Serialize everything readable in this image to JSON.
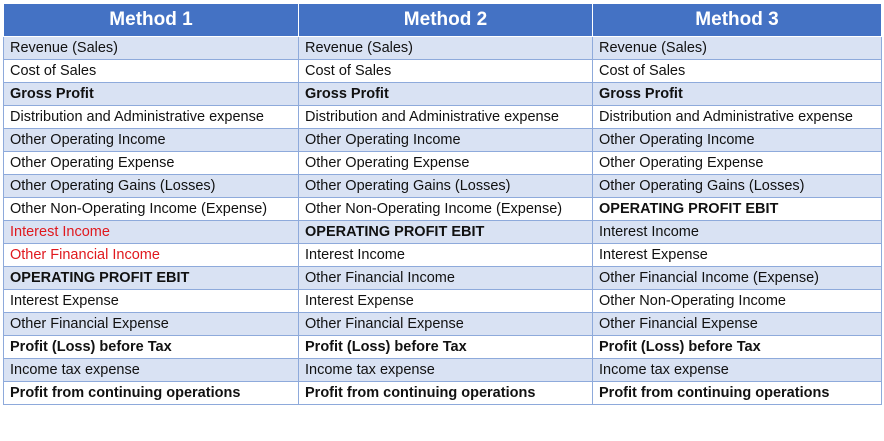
{
  "headers": [
    "Method 1",
    "Method 2",
    "Method 3"
  ],
  "rows": [
    [
      {
        "t": "Revenue (Sales)"
      },
      {
        "t": "Revenue (Sales)"
      },
      {
        "t": "Revenue (Sales)"
      }
    ],
    [
      {
        "t": "Cost of Sales"
      },
      {
        "t": "Cost of Sales"
      },
      {
        "t": "Cost of Sales"
      }
    ],
    [
      {
        "t": "Gross Profit",
        "bold": true
      },
      {
        "t": "Gross Profit",
        "bold": true
      },
      {
        "t": "Gross Profit",
        "bold": true
      }
    ],
    [
      {
        "t": "Distribution and Administrative expense"
      },
      {
        "t": "Distribution and Administrative expense"
      },
      {
        "t": "Distribution and Administrative expense"
      }
    ],
    [
      {
        "t": "Other Operating Income"
      },
      {
        "t": "Other Operating Income"
      },
      {
        "t": "Other Operating Income"
      }
    ],
    [
      {
        "t": "Other Operating Expense"
      },
      {
        "t": "Other Operating Expense"
      },
      {
        "t": "Other Operating Expense"
      }
    ],
    [
      {
        "t": "Other Operating Gains (Losses)"
      },
      {
        "t": "Other Operating Gains (Losses)"
      },
      {
        "t": "Other Operating Gains (Losses)"
      }
    ],
    [
      {
        "t": "Other Non-Operating Income (Expense)"
      },
      {
        "t": "Other Non-Operating Income (Expense)"
      },
      {
        "t": "OPERATING PROFIT EBIT",
        "bold": true
      }
    ],
    [
      {
        "t": "Interest Income",
        "color": "#e0191e"
      },
      {
        "t": "OPERATING PROFIT EBIT",
        "bold": true
      },
      {
        "t": "Interest Income"
      }
    ],
    [
      {
        "t": "Other Financial Income",
        "color": "#e0191e"
      },
      {
        "t": "Interest Income"
      },
      {
        "t": "Interest Expense"
      }
    ],
    [
      {
        "t": "OPERATING PROFIT EBIT",
        "bold": true
      },
      {
        "t": "Other Financial Income"
      },
      {
        "t": "Other Financial Income (Expense)"
      }
    ],
    [
      {
        "t": "Interest Expense"
      },
      {
        "t": " Interest Expense"
      },
      {
        "t": "Other Non-Operating Income"
      }
    ],
    [
      {
        "t": "Other Financial Expense"
      },
      {
        "t": "Other Financial Expense"
      },
      {
        "t": "Other Financial Expense"
      }
    ],
    [
      {
        "t": "Profit (Loss) before Tax",
        "bold": true
      },
      {
        "t": "Profit (Loss) before Tax",
        "bold": true
      },
      {
        "t": "Profit (Loss) before Tax",
        "bold": true
      }
    ],
    [
      {
        "t": "Income tax expense"
      },
      {
        "t": "Income tax expense"
      },
      {
        "t": "Income tax expense"
      }
    ],
    [
      {
        "t": "Profit from continuing operations",
        "bold": true
      },
      {
        "t": "Profit from continuing operations",
        "bold": true
      },
      {
        "t": "Profit from continuing operations",
        "bold": true
      }
    ]
  ],
  "colors": {
    "header_bg": "#4472c4",
    "header_text": "#ffffff",
    "band_bg": "#d9e2f3",
    "border": "#8eaadb",
    "highlight_text": "#e0191e"
  }
}
